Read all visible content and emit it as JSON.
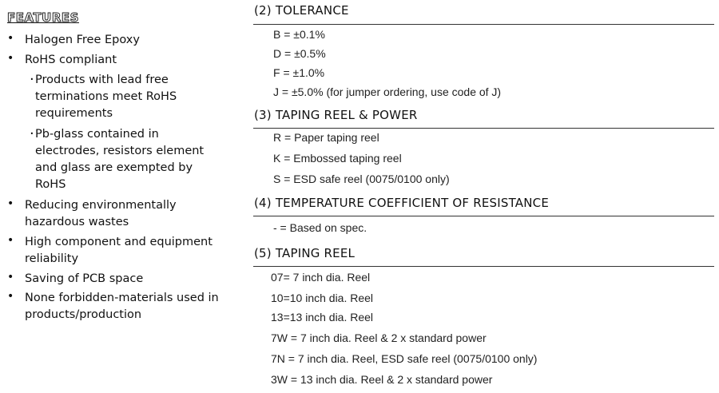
{
  "features": {
    "title": "FEATURES",
    "items": [
      {
        "lines": [
          "Halogen Free Epoxy"
        ]
      },
      {
        "lines": [
          "RoHS compliant"
        ]
      },
      {
        "sub": true,
        "lines": [
          "Products with lead free",
          "terminations meet RoHS",
          "requirements"
        ]
      },
      {
        "sub": true,
        "lines": [
          "Pb-glass contained in",
          "electrodes, resistors element",
          "and glass are exempted by",
          "RoHS"
        ]
      },
      {
        "lines": [
          "Reducing environmentally",
          "hazardous wastes"
        ]
      },
      {
        "lines": [
          "High component and equipment",
          "reliability"
        ]
      },
      {
        "lines": [
          "Saving of PCB space"
        ]
      },
      {
        "lines": [
          "None forbidden-materials used in",
          "products/production"
        ]
      }
    ]
  },
  "sections": [
    {
      "heading": "(2) TOLERANCE",
      "items": [
        "B = ±0.1%",
        "D = ±0.5%",
        "F = ±1.0%",
        "J  = ±5.0% (for jumper ordering, use code of J)"
      ]
    },
    {
      "heading": "(3) TAPING REEL & POWER",
      "items": [
        "R = Paper taping reel",
        "K = Embossed taping reel",
        "S = ESD safe reel (0075/0100 only)"
      ]
    },
    {
      "heading": "(4) TEMPERATURE COEFFICIENT OF RESISTANCE",
      "items": [
        "- = Based on spec."
      ]
    },
    {
      "heading": "(5) TAPING REEL",
      "items": [
        "07= 7 inch dia. Reel",
        "10=10 inch dia. Reel",
        "13=13 inch dia. Reel",
        "7W = 7 inch dia. Reel & 2 x standard power",
        "7N  = 7 inch dia. Reel, ESD safe reel (0075/0100 only)",
        "3W = 13 inch dia. Reel & 2 x standard power"
      ]
    }
  ]
}
